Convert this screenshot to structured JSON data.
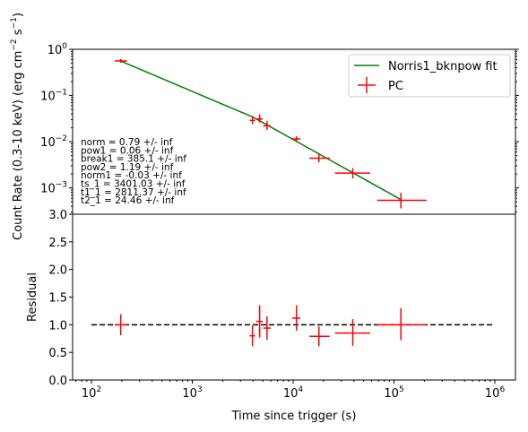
{
  "chart_data": {
    "type": "scatter",
    "xlabel": "Time since trigger (s)",
    "x_scale": "log",
    "xlim": [
      65,
      1600000
    ],
    "x_ticks": [
      {
        "value": 100,
        "base": "10",
        "exp": "2"
      },
      {
        "value": 1000,
        "base": "10",
        "exp": "3"
      },
      {
        "value": 10000,
        "base": "10",
        "exp": "4"
      },
      {
        "value": 100000,
        "base": "10",
        "exp": "5"
      },
      {
        "value": 1000000,
        "base": "10",
        "exp": "6"
      }
    ],
    "top": {
      "ylabel": "Count Rate (0.3-10 keV) (erg cm",
      "ylabel_sup1": "−2",
      "ylabel_mid": " s",
      "ylabel_sup2": "−1",
      "ylabel_end": ")",
      "y_scale": "log",
      "ylim": [
        0.00027,
        1.0
      ],
      "y_ticks": [
        {
          "value": 0.001,
          "base": "10",
          "exp": "−3"
        },
        {
          "value": 0.01,
          "base": "10",
          "exp": "−2"
        },
        {
          "value": 0.1,
          "base": "10",
          "exp": "−1"
        },
        {
          "value": 1,
          "base": "10",
          "exp": "0"
        }
      ],
      "series": [
        {
          "name": "PC",
          "color": "#ff0000",
          "points": [
            {
              "x": 195,
              "x_lo": 170,
              "x_hi": 225,
              "y": 0.56,
              "y_lo": 0.51,
              "y_hi": 0.62
            },
            {
              "x": 3950,
              "x_lo": 3700,
              "x_hi": 4200,
              "y": 0.029,
              "y_lo": 0.024,
              "y_hi": 0.036
            },
            {
              "x": 4650,
              "x_lo": 4300,
              "x_hi": 5000,
              "y": 0.031,
              "y_lo": 0.026,
              "y_hi": 0.039
            },
            {
              "x": 5500,
              "x_lo": 5050,
              "x_hi": 6000,
              "y": 0.022,
              "y_lo": 0.018,
              "y_hi": 0.028
            },
            {
              "x": 10800,
              "x_lo": 9800,
              "x_hi": 11800,
              "y": 0.0115,
              "y_lo": 0.01,
              "y_hi": 0.0132
            },
            {
              "x": 18000,
              "x_lo": 14500,
              "x_hi": 23000,
              "y": 0.0044,
              "y_lo": 0.0036,
              "y_hi": 0.0053
            },
            {
              "x": 39000,
              "x_lo": 26000,
              "x_hi": 58000,
              "y": 0.0021,
              "y_lo": 0.0016,
              "y_hi": 0.0027
            },
            {
              "x": 117000,
              "x_lo": 68000,
              "x_hi": 210000,
              "y": 0.00054,
              "y_lo": 0.00036,
              "y_hi": 0.00078
            }
          ]
        }
      ],
      "fit": {
        "name": "Norris1_bknpow fit",
        "color": "#008000",
        "points": [
          {
            "x": 190,
            "y": 0.57
          },
          {
            "x": 4000,
            "y": 0.034
          },
          {
            "x": 117000,
            "y": 0.00056
          }
        ]
      },
      "legend_position": "upper right",
      "fit_params": [
        "norm = 0.79 +/- inf",
        "pow1 = 0.06 +/- inf",
        "break1 = 385.1 +/- inf",
        "pow2 = 1.19 +/- inf",
        "norm1 = -0.03 +/- inf",
        "ts_1 = 3401.03 +/- inf",
        "t1_1 = 2811.37 +/- inf",
        "t2_1 = 24.46 +/- inf"
      ]
    },
    "bottom": {
      "ylabel": "Residual",
      "y_scale": "linear",
      "ylim": [
        0.0,
        3.0
      ],
      "y_ticks": [
        {
          "value": 0.0,
          "label": "0.0"
        },
        {
          "value": 0.5,
          "label": "0.5"
        },
        {
          "value": 1.0,
          "label": "1.0"
        },
        {
          "value": 1.5,
          "label": "1.5"
        },
        {
          "value": 2.0,
          "label": "2.0"
        },
        {
          "value": 2.5,
          "label": "2.5"
        },
        {
          "value": 3.0,
          "label": "3.0"
        }
      ],
      "reference_line": {
        "y": 1.0,
        "x_from": 100,
        "x_to": 1000000,
        "style": "dashed",
        "color": "#000000"
      },
      "points": [
        {
          "x": 195,
          "x_lo": 170,
          "x_hi": 225,
          "y": 1.0,
          "y_lo": 0.81,
          "y_hi": 1.19
        },
        {
          "x": 3950,
          "x_lo": 3700,
          "x_hi": 4200,
          "y": 0.8,
          "y_lo": 0.61,
          "y_hi": 0.99
        },
        {
          "x": 4650,
          "x_lo": 4300,
          "x_hi": 5000,
          "y": 1.06,
          "y_lo": 0.77,
          "y_hi": 1.35
        },
        {
          "x": 5500,
          "x_lo": 5050,
          "x_hi": 6000,
          "y": 0.94,
          "y_lo": 0.73,
          "y_hi": 1.15
        },
        {
          "x": 10800,
          "x_lo": 9800,
          "x_hi": 11800,
          "y": 1.12,
          "y_lo": 0.89,
          "y_hi": 1.35
        },
        {
          "x": 18000,
          "x_lo": 14500,
          "x_hi": 23000,
          "y": 0.79,
          "y_lo": 0.61,
          "y_hi": 0.97
        },
        {
          "x": 39000,
          "x_lo": 26000,
          "x_hi": 58000,
          "y": 0.85,
          "y_lo": 0.62,
          "y_hi": 1.1
        },
        {
          "x": 117000,
          "x_lo": 68000,
          "x_hi": 210000,
          "y": 1.0,
          "y_lo": 0.72,
          "y_hi": 1.3
        }
      ]
    }
  }
}
